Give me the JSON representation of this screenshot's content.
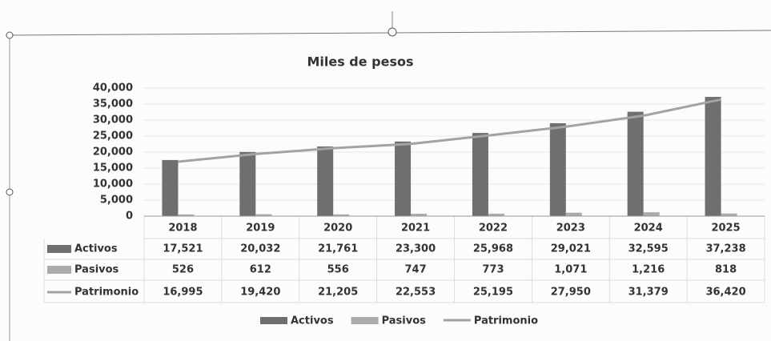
{
  "chart_data": {
    "type": "bar",
    "title": "Miles de pesos",
    "categories": [
      "2018",
      "2019",
      "2020",
      "2021",
      "2022",
      "2023",
      "2024",
      "2025"
    ],
    "series": [
      {
        "name": "Activos",
        "color": "#6f6f6f",
        "type": "bar",
        "values": [
          17521,
          20032,
          21761,
          23300,
          25968,
          29021,
          32595,
          37238
        ],
        "value_labels": [
          "17,521",
          "20,032",
          "21,761",
          "23,300",
          "25,968",
          "29,021",
          "32,595",
          "37,238"
        ]
      },
      {
        "name": "Pasivos",
        "color": "#ababab",
        "type": "bar",
        "values": [
          526,
          612,
          556,
          747,
          773,
          1071,
          1216,
          818
        ],
        "value_labels": [
          "526",
          "612",
          "556",
          "747",
          "773",
          "1,071",
          "1,216",
          "818"
        ]
      },
      {
        "name": "Patrimonio",
        "color": "#a3a3a3",
        "type": "line",
        "values": [
          16995,
          19420,
          21205,
          22553,
          25195,
          27950,
          31379,
          36420
        ],
        "value_labels": [
          "16,995",
          "19,420",
          "21,205",
          "22,553",
          "25,195",
          "27,950",
          "31,379",
          "36,420"
        ]
      }
    ],
    "ylim": [
      0,
      40000
    ],
    "yticks": [
      0,
      {
        "value": 5000,
        "label": "5,000"
      },
      {
        "value": 10000,
        "label": "10,000"
      },
      {
        "value": 15000,
        "label": "15,000"
      },
      {
        "value": 20000,
        "label": "20,000"
      },
      {
        "value": 25000,
        "label": "25,000"
      },
      {
        "value": 30000,
        "label": "30,000"
      },
      {
        "value": 35000,
        "label": "35,000"
      },
      {
        "value": 40000,
        "label": "40,000"
      }
    ],
    "grid": true,
    "legend": "bottom"
  }
}
